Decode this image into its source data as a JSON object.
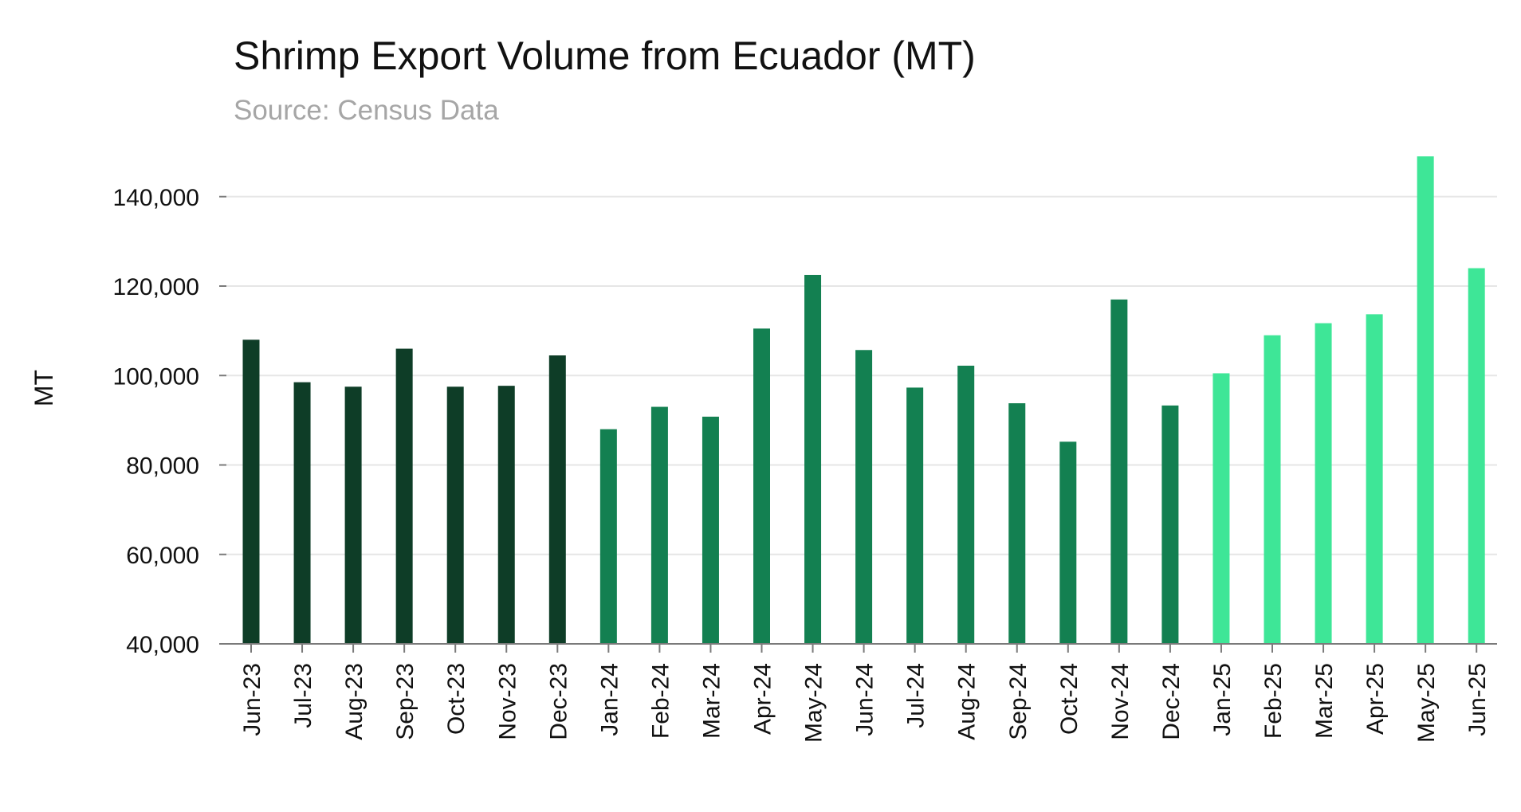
{
  "chart_data": {
    "type": "bar",
    "title": "Shrimp Export Volume from Ecuador (MT)",
    "subtitle": "Source: Census Data",
    "xlabel": "",
    "ylabel": "MT",
    "ylim": [
      40000,
      150000
    ],
    "yticks": [
      40000,
      60000,
      80000,
      100000,
      120000,
      140000
    ],
    "ytick_labels": [
      "40,000",
      "60,000",
      "80,000",
      "100,000",
      "120,000",
      "140,000"
    ],
    "grid": true,
    "categories": [
      "Jun-23",
      "Jul-23",
      "Aug-23",
      "Sep-23",
      "Oct-23",
      "Nov-23",
      "Dec-23",
      "Jan-24",
      "Feb-24",
      "Mar-24",
      "Apr-24",
      "May-24",
      "Jun-24",
      "Jul-24",
      "Aug-24",
      "Sep-24",
      "Oct-24",
      "Nov-24",
      "Dec-24",
      "Jan-25",
      "Feb-25",
      "Mar-25",
      "Apr-25",
      "May-25",
      "Jun-25"
    ],
    "values": [
      108000,
      98500,
      97500,
      106000,
      97500,
      97700,
      104500,
      88000,
      93000,
      90800,
      110500,
      122500,
      105700,
      97300,
      102200,
      93800,
      85200,
      117000,
      93300,
      100500,
      109000,
      111700,
      113700,
      149000,
      124000
    ],
    "bar_colors": [
      "#0e3d27",
      "#0e3d27",
      "#0e3d27",
      "#0e3d27",
      "#0e3d27",
      "#0e3d27",
      "#0e3d27",
      "#138051",
      "#138051",
      "#138051",
      "#138051",
      "#138051",
      "#138051",
      "#138051",
      "#138051",
      "#138051",
      "#138051",
      "#138051",
      "#138051",
      "#3ee697",
      "#3ee697",
      "#3ee697",
      "#3ee697",
      "#3ee697",
      "#3ee697"
    ]
  }
}
